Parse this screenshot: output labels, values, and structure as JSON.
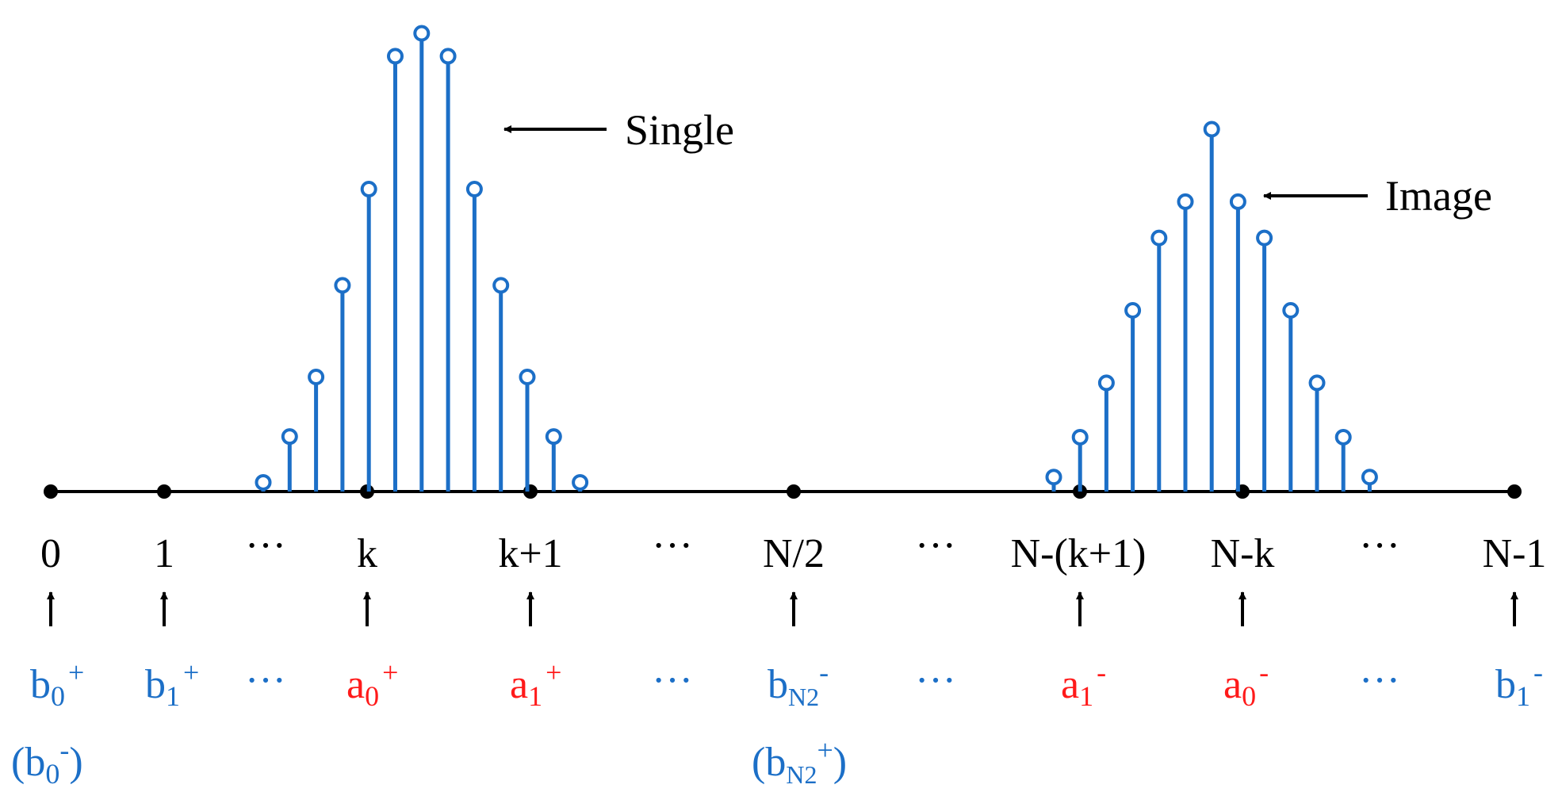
{
  "colors": {
    "axis": "#000000",
    "stem": "#1c6fc7",
    "blue": "#1c6fc7",
    "red": "#ff1a1a",
    "dots": "#1c6fc7"
  },
  "annotations": {
    "single": "Single",
    "image": "Image"
  },
  "single_stems": [
    0.02,
    0.12,
    0.25,
    0.45,
    0.66,
    0.95,
    1.0,
    0.95,
    0.66,
    0.45,
    0.25,
    0.12,
    0.02
  ],
  "image_stems": [
    0.04,
    0.15,
    0.3,
    0.5,
    0.7,
    0.8,
    1.0,
    0.8,
    0.7,
    0.5,
    0.3,
    0.15,
    0.04
  ],
  "ticks": {
    "t0": "0",
    "t1": "1",
    "d1": "···",
    "tk": "k",
    "tk1": "k+1",
    "d2": "···",
    "tn2": "N/2",
    "d3": "···",
    "tnk1": "N-(k+1)",
    "tnk": "N-k",
    "d4": "···",
    "tn1": "N-1"
  },
  "labels": {
    "b": "b",
    "a": "a",
    "sub0": "0",
    "sub1": "1",
    "subN2": "N2",
    "plus": "+",
    "minus": "-",
    "dots": "···",
    "lp": "(",
    "rp": ")"
  }
}
